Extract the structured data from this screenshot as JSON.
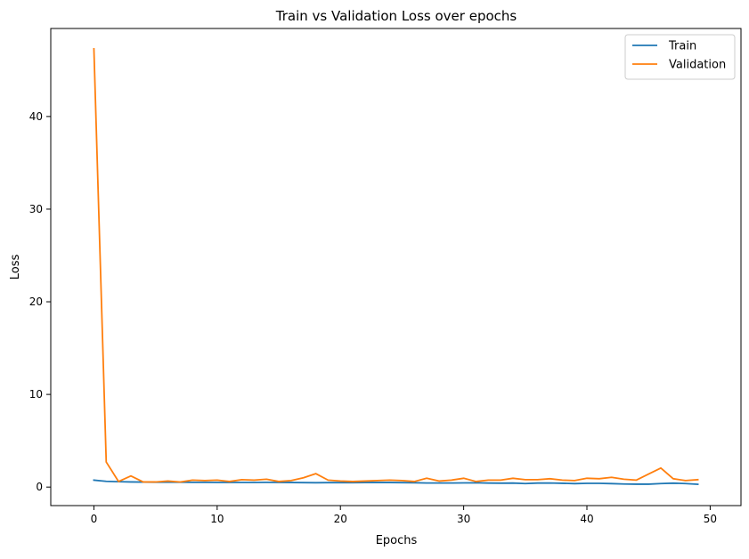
{
  "chart_data": {
    "type": "line",
    "title": "Train vs Validation Loss over epochs",
    "xlabel": "Epochs",
    "ylabel": "Loss",
    "xlim": [
      -3.5,
      52.5
    ],
    "ylim": [
      -2,
      49.5
    ],
    "xticks": [
      0,
      10,
      20,
      30,
      40,
      50
    ],
    "yticks": [
      0,
      10,
      20,
      30,
      40
    ],
    "legend_position": "top-right",
    "grid": false,
    "x": [
      0,
      1,
      2,
      3,
      4,
      5,
      6,
      7,
      8,
      9,
      10,
      11,
      12,
      13,
      14,
      15,
      16,
      17,
      18,
      19,
      20,
      21,
      22,
      23,
      24,
      25,
      26,
      27,
      28,
      29,
      30,
      31,
      32,
      33,
      34,
      35,
      36,
      37,
      38,
      39,
      40,
      41,
      42,
      43,
      44,
      45,
      46,
      47,
      48,
      49
    ],
    "series": [
      {
        "name": "Train",
        "color": "#1f77b4",
        "values": [
          0.75,
          0.62,
          0.58,
          0.55,
          0.54,
          0.53,
          0.52,
          0.52,
          0.51,
          0.51,
          0.5,
          0.5,
          0.5,
          0.5,
          0.51,
          0.5,
          0.49,
          0.48,
          0.47,
          0.48,
          0.48,
          0.48,
          0.49,
          0.49,
          0.49,
          0.48,
          0.47,
          0.44,
          0.44,
          0.44,
          0.45,
          0.46,
          0.43,
          0.42,
          0.43,
          0.38,
          0.43,
          0.44,
          0.41,
          0.37,
          0.4,
          0.4,
          0.37,
          0.33,
          0.31,
          0.31,
          0.38,
          0.42,
          0.38,
          0.3
        ]
      },
      {
        "name": "Validation",
        "color": "#ff7f0e",
        "values": [
          47.3,
          2.7,
          0.6,
          1.2,
          0.55,
          0.55,
          0.65,
          0.55,
          0.75,
          0.7,
          0.75,
          0.6,
          0.8,
          0.75,
          0.85,
          0.6,
          0.7,
          1.0,
          1.45,
          0.75,
          0.65,
          0.6,
          0.65,
          0.7,
          0.75,
          0.7,
          0.6,
          0.95,
          0.65,
          0.75,
          0.95,
          0.6,
          0.75,
          0.75,
          0.95,
          0.8,
          0.8,
          0.9,
          0.75,
          0.7,
          0.95,
          0.9,
          1.05,
          0.85,
          0.75,
          1.4,
          2.05,
          0.9,
          0.7,
          0.8
        ]
      }
    ]
  }
}
